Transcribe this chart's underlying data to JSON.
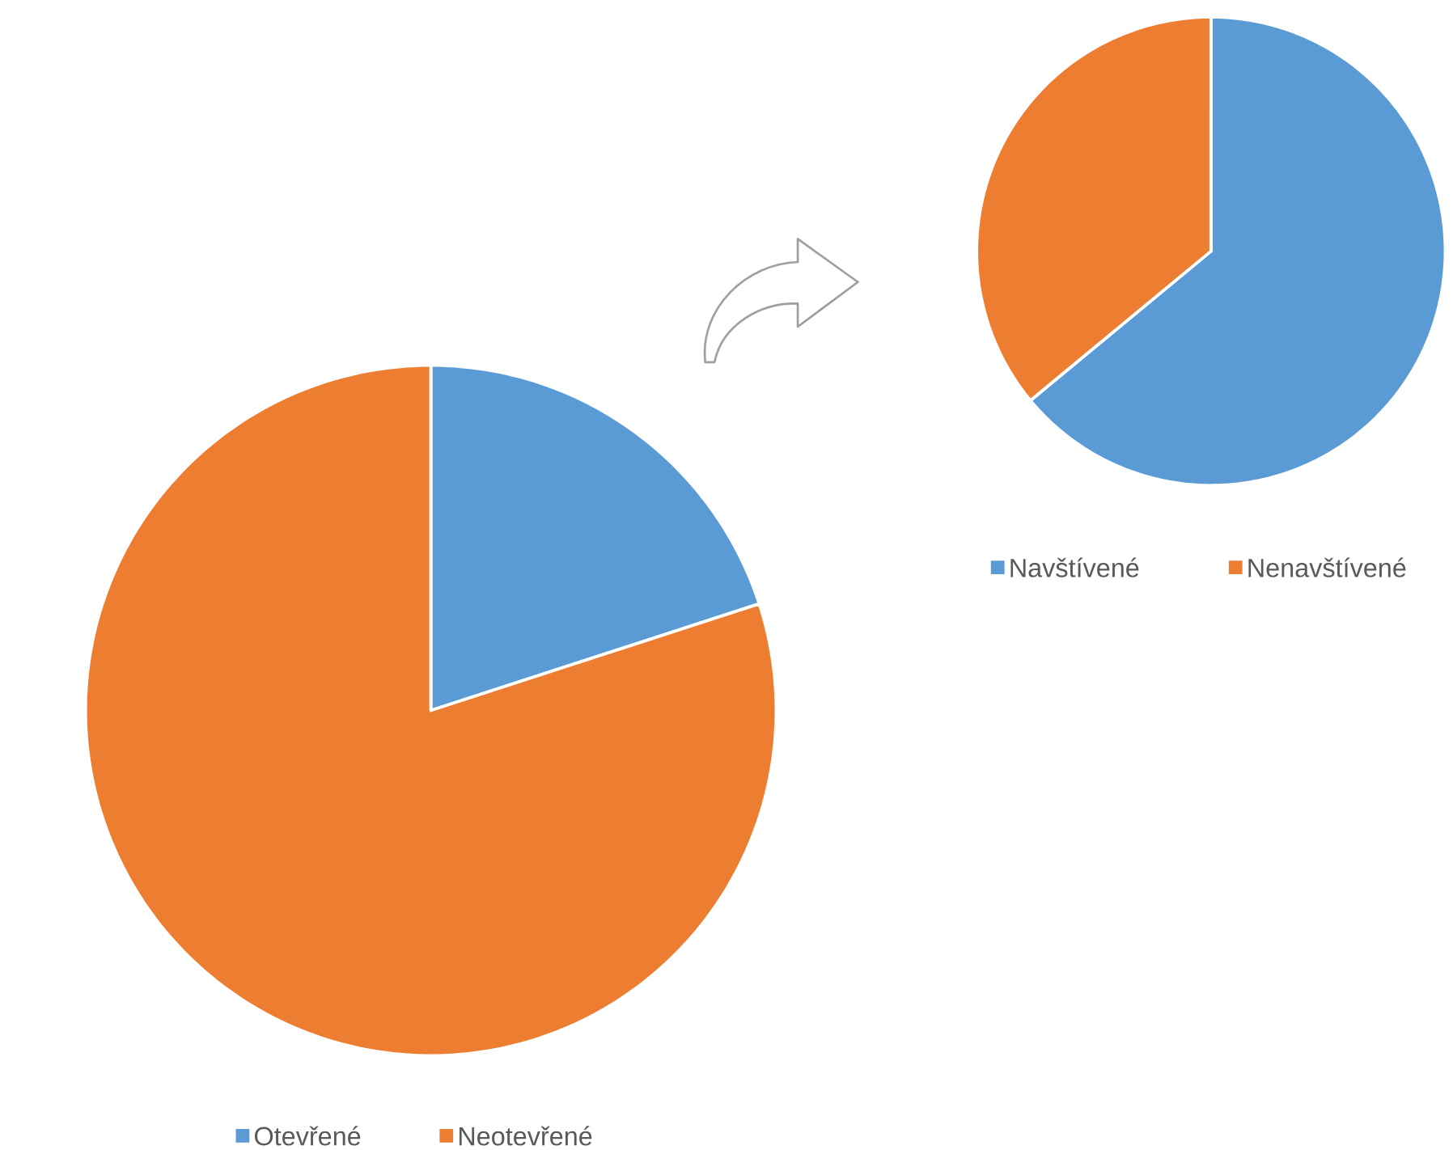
{
  "chart_data": [
    {
      "type": "pie",
      "categories": [
        "Otevřené",
        "Neotevřené"
      ],
      "values": [
        20,
        80
      ],
      "colors": [
        "#5b9bd5",
        "#ed7d31"
      ],
      "legend": "bottom"
    },
    {
      "type": "pie",
      "categories": [
        "Navštívené",
        "Nenavštívené"
      ],
      "values": [
        64,
        36
      ],
      "colors": [
        "#5b9bd5",
        "#ed7d31"
      ],
      "legend": "bottom"
    }
  ]
}
